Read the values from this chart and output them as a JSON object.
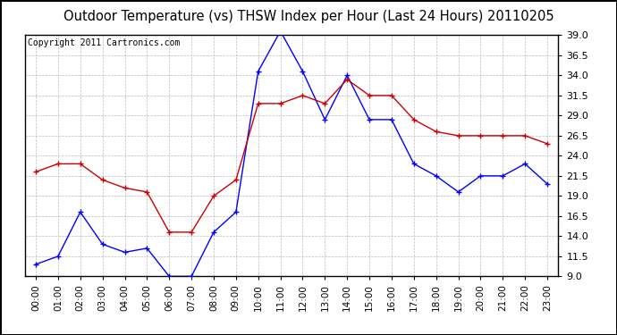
{
  "title": "Outdoor Temperature (vs) THSW Index per Hour (Last 24 Hours) 20110205",
  "copyright_text": "Copyright 2011 Cartronics.com",
  "hours": [
    "00:00",
    "01:00",
    "02:00",
    "03:00",
    "04:00",
    "05:00",
    "06:00",
    "07:00",
    "08:00",
    "09:00",
    "10:00",
    "11:00",
    "12:00",
    "13:00",
    "14:00",
    "15:00",
    "16:00",
    "17:00",
    "18:00",
    "19:00",
    "20:00",
    "21:00",
    "22:00",
    "23:00"
  ],
  "temp_blue": [
    10.5,
    11.5,
    17.0,
    13.0,
    12.0,
    12.5,
    9.0,
    9.0,
    14.5,
    17.0,
    34.5,
    39.5,
    34.5,
    28.5,
    34.0,
    28.5,
    28.5,
    23.0,
    21.5,
    19.5,
    21.5,
    21.5,
    23.0,
    20.5
  ],
  "thsw_red": [
    22.0,
    23.0,
    23.0,
    21.0,
    20.0,
    19.5,
    14.5,
    14.5,
    19.0,
    21.0,
    30.5,
    30.5,
    31.5,
    30.5,
    33.5,
    31.5,
    31.5,
    28.5,
    27.0,
    26.5,
    26.5,
    26.5,
    26.5,
    25.5
  ],
  "ylim": [
    9.0,
    39.0
  ],
  "yticks": [
    9.0,
    11.5,
    14.0,
    16.5,
    19.0,
    21.5,
    24.0,
    26.5,
    29.0,
    31.5,
    34.0,
    36.5,
    39.0
  ],
  "blue_color": "#0000ff",
  "red_color": "#cc0000",
  "bg_color": "#ffffff",
  "grid_color": "#bbbbbb",
  "title_fontsize": 10.5,
  "copyright_fontsize": 7.0,
  "tick_fontsize": 7.5,
  "ytick_fontsize": 8.0
}
